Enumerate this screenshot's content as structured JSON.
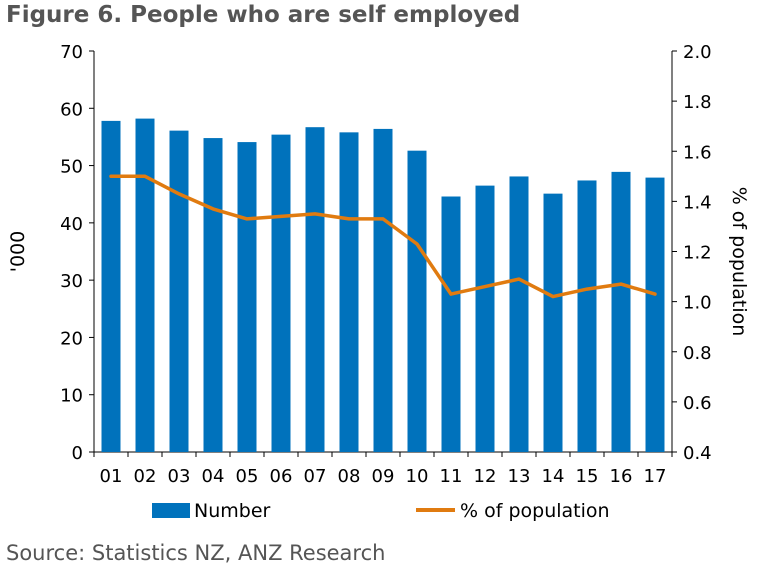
{
  "title": "Figure 6. People who are self employed",
  "source": "Source: Statistics NZ, ANZ Research",
  "chart_data": {
    "type": "bar",
    "categories": [
      "01",
      "02",
      "03",
      "04",
      "05",
      "06",
      "07",
      "08",
      "09",
      "10",
      "11",
      "12",
      "13",
      "14",
      "15",
      "16",
      "17"
    ],
    "series": [
      {
        "name": "Number",
        "type": "bar",
        "axis": "left",
        "color": "#0072BC",
        "values": [
          57.8,
          58.2,
          56.1,
          54.8,
          54.1,
          55.4,
          56.7,
          55.8,
          56.4,
          52.6,
          44.6,
          46.5,
          48.1,
          45.1,
          47.4,
          48.9,
          47.9
        ]
      },
      {
        "name": "% of population",
        "type": "line",
        "axis": "right",
        "color": "#E07B10",
        "values": [
          1.5,
          1.5,
          1.43,
          1.37,
          1.33,
          1.34,
          1.35,
          1.33,
          1.33,
          1.23,
          1.03,
          1.06,
          1.09,
          1.02,
          1.05,
          1.07,
          1.03
        ]
      }
    ],
    "ylabel": "'000",
    "y2label": "% of population",
    "ylim": [
      0,
      70
    ],
    "yticks": [
      "0",
      "10",
      "20",
      "30",
      "40",
      "50",
      "60",
      "70"
    ],
    "y2lim": [
      0.4,
      2.0
    ],
    "y2ticks": [
      "0.4",
      "0.6",
      "0.8",
      "1.0",
      "1.2",
      "1.4",
      "1.6",
      "1.8",
      "2.0"
    ],
    "grid": false,
    "legend_position": "bottom"
  }
}
